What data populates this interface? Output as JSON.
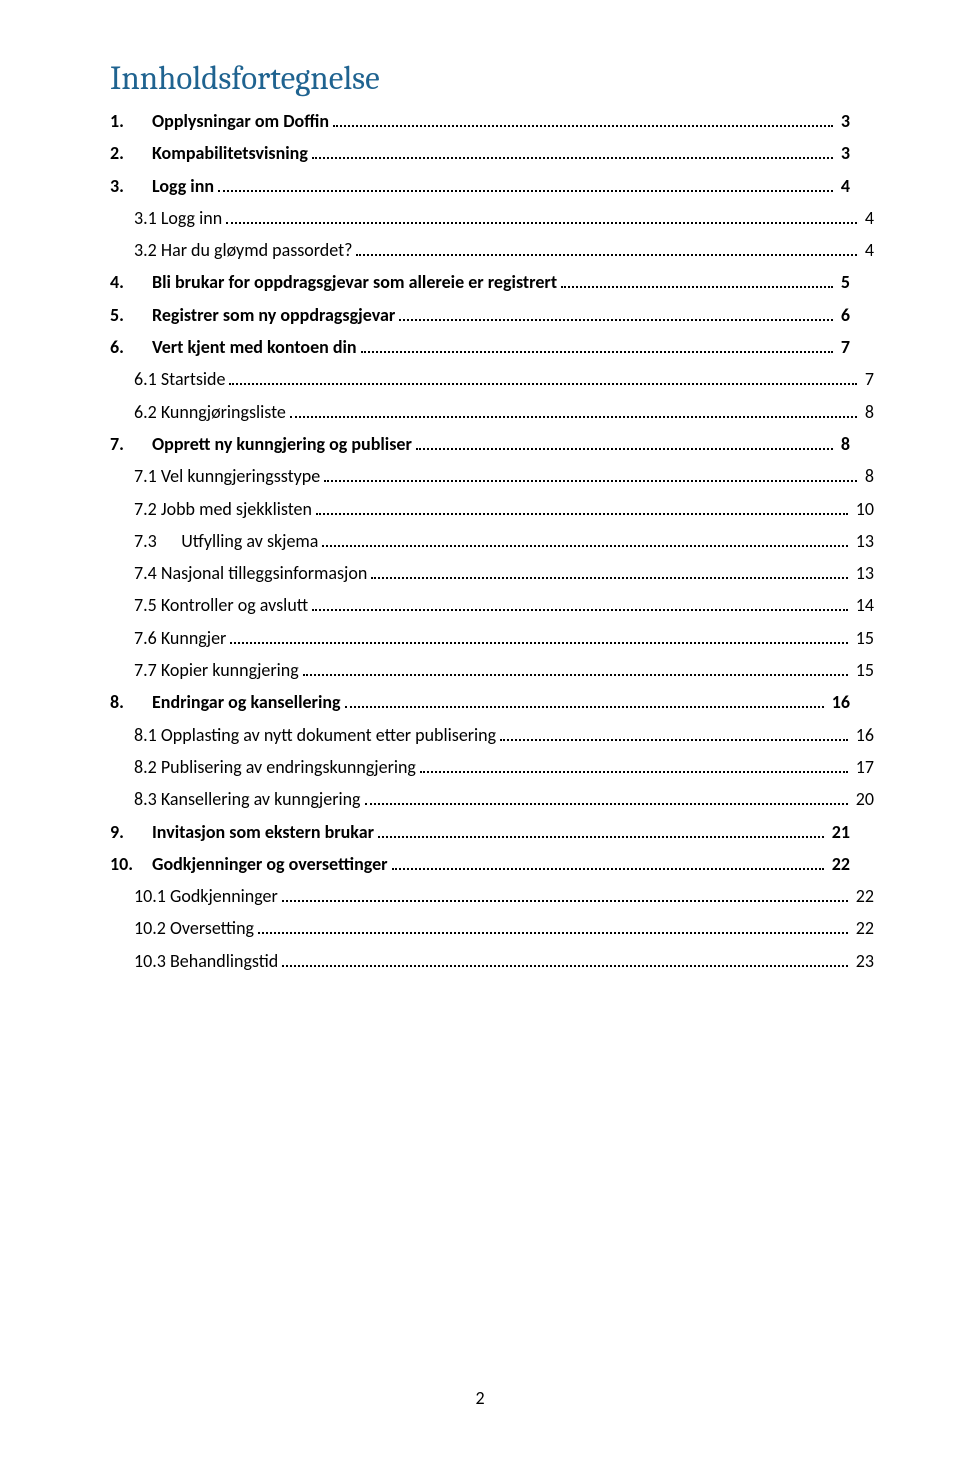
{
  "title": "Innholdsfortegnelse",
  "page_number": "2",
  "colors": {
    "title": "#1f6390",
    "text": "#000000",
    "background": "#ffffff",
    "leader": "#000000"
  },
  "typography": {
    "title_fontsize_pt": 24,
    "title_font_family": "Cambria",
    "row_fontsize_pt": 13,
    "row_font_family": "Calibri",
    "l1_weight": 700,
    "l2_weight": 400
  },
  "toc": [
    {
      "level": 1,
      "num": "1.",
      "label": "Opplysningar om Doffin",
      "page": "3"
    },
    {
      "level": 1,
      "num": "2.",
      "label": "Kompabilitetsvisning",
      "page": "3"
    },
    {
      "level": 1,
      "num": "3.",
      "label": "Logg inn",
      "page": "4"
    },
    {
      "level": 2,
      "num": "3.1",
      "label": "Logg inn",
      "page": "4"
    },
    {
      "level": 2,
      "num": "3.2",
      "label": "Har du gløymd passordet?",
      "page": "4"
    },
    {
      "level": 1,
      "num": "4.",
      "label": "Bli brukar for oppdragsgjevar som allereie er registrert",
      "page": "5"
    },
    {
      "level": 1,
      "num": "5.",
      "label": "Registrer som ny oppdragsgjevar",
      "page": "6"
    },
    {
      "level": 1,
      "num": "6.",
      "label": "Vert kjent med kontoen din",
      "page": "7"
    },
    {
      "level": 2,
      "num": "6.1",
      "label": "Startside",
      "page": "7"
    },
    {
      "level": 2,
      "num": "6.2",
      "label": "Kunngjøringsliste",
      "page": "8"
    },
    {
      "level": 1,
      "num": "7.",
      "label": "Opprett ny kunngjering og publiser",
      "page": "8"
    },
    {
      "level": 2,
      "num": "7.1",
      "label": "Vel kunngjeringsstype",
      "page": "8"
    },
    {
      "level": 2,
      "num": "7.2",
      "label": "Jobb med sjekklisten",
      "page": "10"
    },
    {
      "level": 3,
      "num": "7.3",
      "label": "Utfylling av skjema",
      "page": "13"
    },
    {
      "level": 2,
      "num": "7.4",
      "label": "Nasjonal tilleggsinformasjon",
      "page": "13"
    },
    {
      "level": 2,
      "num": "7.5",
      "label": "Kontroller og avslutt",
      "page": "14"
    },
    {
      "level": 2,
      "num": "7.6",
      "label": "Kunngjer",
      "page": "15"
    },
    {
      "level": 2,
      "num": "7.7",
      "label": "Kopier kunngjering",
      "page": "15"
    },
    {
      "level": 1,
      "num": "8.",
      "label": "Endringar og kansellering",
      "page": "16"
    },
    {
      "level": 2,
      "num": "8.1",
      "label": "Opplasting av nytt dokument etter publisering",
      "page": "16"
    },
    {
      "level": 2,
      "num": "8.2",
      "label": "Publisering av endringskunngjering",
      "page": "17"
    },
    {
      "level": 2,
      "num": "8.3",
      "label": "Kansellering av kunngjering",
      "page": "20"
    },
    {
      "level": 1,
      "num": "9.",
      "label": "Invitasjon som ekstern brukar",
      "page": "21"
    },
    {
      "level": 1,
      "num": "10.",
      "label": "Godkjenninger og oversettinger",
      "page": "22"
    },
    {
      "level": 2,
      "num": "10.1",
      "label": "Godkjenninger",
      "page": "22"
    },
    {
      "level": 2,
      "num": "10.2",
      "label": "Oversetting",
      "page": "22"
    },
    {
      "level": 2,
      "num": "10.3",
      "label": "Behandlingstid",
      "page": "23"
    }
  ]
}
